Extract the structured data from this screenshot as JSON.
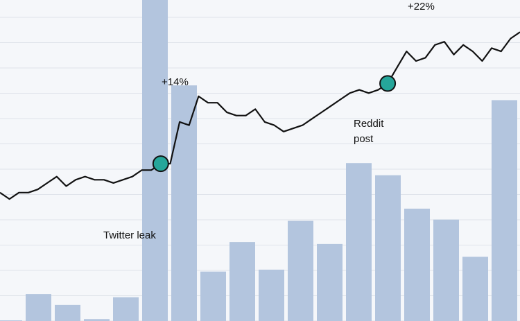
{
  "chart_data": {
    "type": "bar+line",
    "grid": true,
    "colors": {
      "background": "#f5f7fa",
      "grid": "#dfe3ea",
      "bars": "#b3c5de",
      "line": "#111111",
      "marker": "#26a69a"
    },
    "bars": {
      "values": [
        1,
        42,
        25,
        3,
        37,
        500,
        367,
        77,
        123,
        80,
        156,
        120,
        246,
        227,
        175,
        158,
        100,
        344,
        240
      ]
    },
    "line": {
      "ylim": [
        0,
        100
      ],
      "points": [
        [
          0,
          40
        ],
        [
          1,
          38
        ],
        [
          2,
          40
        ],
        [
          3,
          40
        ],
        [
          4,
          41
        ],
        [
          5,
          43
        ],
        [
          6,
          45
        ],
        [
          7,
          42
        ],
        [
          8,
          44
        ],
        [
          9,
          45
        ],
        [
          10,
          44
        ],
        [
          11,
          44
        ],
        [
          12,
          43
        ],
        [
          13,
          44
        ],
        [
          14,
          45
        ],
        [
          15,
          47
        ],
        [
          16,
          47
        ],
        [
          17,
          49
        ],
        [
          18,
          49
        ],
        [
          19,
          62
        ],
        [
          20,
          61
        ],
        [
          21,
          70
        ],
        [
          22,
          68
        ],
        [
          23,
          68
        ],
        [
          24,
          65
        ],
        [
          25,
          64
        ],
        [
          26,
          64
        ],
        [
          27,
          66
        ],
        [
          28,
          62
        ],
        [
          29,
          61
        ],
        [
          30,
          59
        ],
        [
          31,
          60
        ],
        [
          32,
          61
        ],
        [
          33,
          63
        ],
        [
          34,
          65
        ],
        [
          35,
          67
        ],
        [
          36,
          69
        ],
        [
          37,
          71
        ],
        [
          38,
          72
        ],
        [
          39,
          71
        ],
        [
          40,
          72
        ],
        [
          41,
          74
        ],
        [
          42,
          79
        ],
        [
          43,
          84
        ],
        [
          44,
          81
        ],
        [
          45,
          82
        ],
        [
          46,
          86
        ],
        [
          47,
          87
        ],
        [
          48,
          83
        ],
        [
          49,
          86
        ],
        [
          50,
          84
        ],
        [
          51,
          81
        ],
        [
          52,
          85
        ],
        [
          53,
          84
        ],
        [
          54,
          88
        ],
        [
          55,
          90
        ]
      ]
    },
    "annotations": {
      "twitter": {
        "label": "Twitter leak",
        "index": 17,
        "marker": true
      },
      "peak1": {
        "label": "+14%",
        "index": 21,
        "marker": false
      },
      "reddit": {
        "label_line1": "Reddit",
        "label_line2": "post",
        "index": 41,
        "marker": true
      },
      "peak2": {
        "label": "+22%",
        "index": 47,
        "marker": false
      }
    }
  }
}
